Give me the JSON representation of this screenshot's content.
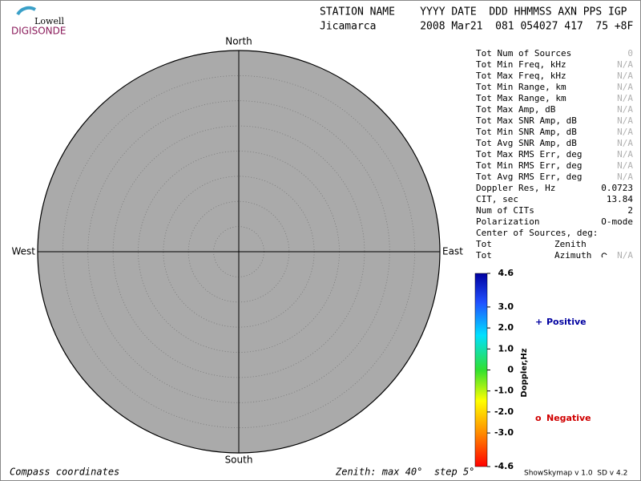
{
  "logo": {
    "line1": "Lowell",
    "line2": "DIGISONDE"
  },
  "header": {
    "labels": "STATION NAME    YYYY DATE  DDD HHMMSS AXN PPS IGP",
    "values": "Jicamarca       2008 Mar21  081 054027 417  75 +8F"
  },
  "compass": {
    "north": "North",
    "south": "South",
    "east": "East",
    "west": "West"
  },
  "stats": [
    {
      "label": "Tot Num of Sources",
      "value": "0",
      "muted": true
    },
    {
      "label": "Tot Min Freq, kHz",
      "value": "N/A",
      "muted": true
    },
    {
      "label": "Tot Max Freq, kHz",
      "value": "N/A",
      "muted": true
    },
    {
      "label": "Tot Min Range, km",
      "value": "N/A",
      "muted": true
    },
    {
      "label": "Tot Max Range, km",
      "value": "N/A",
      "muted": true
    },
    {
      "label": "Tot Max Amp, dB",
      "value": "N/A",
      "muted": true
    },
    {
      "label": "Tot Max SNR Amp, dB",
      "value": "N/A",
      "muted": true
    },
    {
      "label": "Tot Min SNR Amp, dB",
      "value": "N/A",
      "muted": true
    },
    {
      "label": "Tot Avg SNR Amp, dB",
      "value": "N/A",
      "muted": true
    },
    {
      "label": "Tot Max RMS Err, deg",
      "value": "N/A",
      "muted": true
    },
    {
      "label": "Tot Min RMS Err, deg",
      "value": "N/A",
      "muted": true
    },
    {
      "label": "Tot Avg RMS Err, deg",
      "value": "N/A",
      "muted": true
    },
    {
      "label": "Doppler Res, Hz",
      "value": "0.0723"
    },
    {
      "label": "CIT, sec",
      "value": "13.84"
    },
    {
      "label": "Num of CITs",
      "value": "2"
    },
    {
      "label": "Polarization",
      "value": "O-mode"
    }
  ],
  "center": {
    "title": "Center of Sources, deg:",
    "rows": [
      {
        "label": "Tot",
        "name": "Zenith"
      },
      {
        "label": "Tot",
        "name": "Azimuth",
        "value": "N/A"
      }
    ]
  },
  "colorbar": {
    "label": "Doppler,Hz",
    "lim": [
      -4.6,
      4.6
    ],
    "ticks": [
      {
        "value": 4.6,
        "label": "4.6"
      },
      {
        "value": 3,
        "label": "3.0"
      },
      {
        "value": 2,
        "label": "2.0"
      },
      {
        "value": 1,
        "label": "1.0"
      },
      0,
      {
        "value": -1,
        "label": "-1.0"
      },
      {
        "value": -2,
        "label": "-2.0"
      },
      {
        "value": -3,
        "label": "-3.0"
      },
      {
        "value": -4.6,
        "label": "-4.6"
      }
    ]
  },
  "legend": [
    {
      "symbol": "+",
      "label": "Positive",
      "color": "#0000a0"
    },
    {
      "symbol": "o",
      "label": "Negative",
      "color": "#d00000"
    }
  ],
  "footer": {
    "left": "Compass coordinates",
    "middle": "Zenith: max 40°  step 5°",
    "right": "ShowSkymap v 1.0  SD v 4.2"
  }
}
